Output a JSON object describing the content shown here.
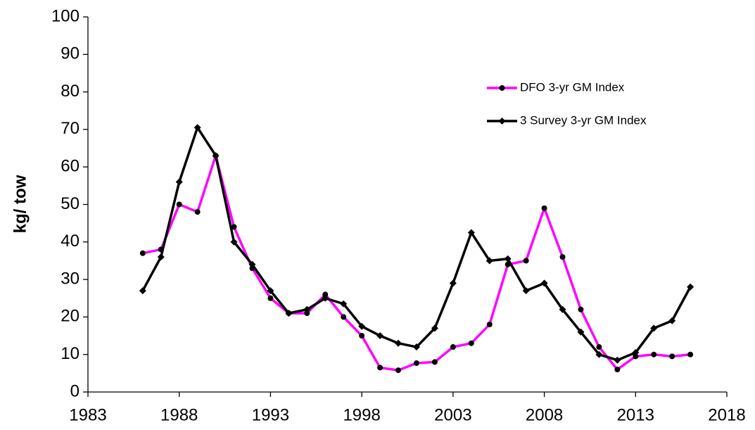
{
  "chart_data": {
    "type": "line",
    "y_label": "kg/ tow",
    "x": [
      1986,
      1987,
      1988,
      1989,
      1990,
      1991,
      1992,
      1993,
      1994,
      1995,
      1996,
      1997,
      1998,
      1999,
      2000,
      2001,
      2002,
      2003,
      2004,
      2005,
      2006,
      2007,
      2008,
      2009,
      2010,
      2011,
      2012,
      2013,
      2014,
      2015,
      2016
    ],
    "series": [
      {
        "name": "DFO 3-yr GM Index",
        "color": "#ff00ff",
        "marker": "circle",
        "values": [
          37,
          38,
          50,
          48,
          63,
          44,
          33,
          25,
          21,
          21,
          26,
          20,
          15,
          6.5,
          5.8,
          7.7,
          8,
          12,
          13,
          18,
          34,
          35,
          49,
          36,
          22,
          12,
          6,
          9.5,
          10,
          9.5,
          10
        ]
      },
      {
        "name": "3 Survey 3-yr GM Index",
        "color": "#000000",
        "marker": "diamond",
        "values": [
          27,
          36,
          56,
          70.5,
          63,
          40,
          34,
          27,
          21,
          22,
          25,
          23.5,
          17.5,
          15,
          13,
          12,
          17,
          29,
          42.5,
          35,
          35.5,
          27,
          29,
          22,
          16,
          10,
          8.5,
          10.5,
          17,
          19,
          28
        ]
      }
    ],
    "xlim": [
      1983,
      2018
    ],
    "xticks": [
      1983,
      1988,
      1993,
      1998,
      2003,
      2008,
      2013,
      2018
    ],
    "ylim": [
      0,
      100
    ],
    "yticks": [
      0,
      10,
      20,
      30,
      40,
      50,
      60,
      70,
      80,
      90,
      100
    ],
    "grid": false
  }
}
